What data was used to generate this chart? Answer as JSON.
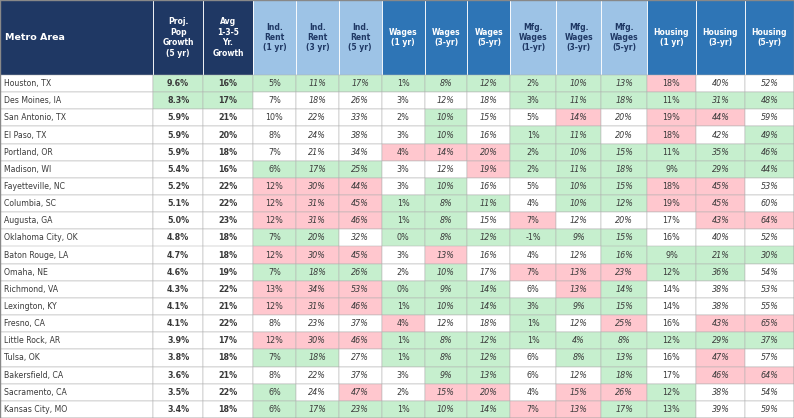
{
  "headers": [
    "Metro Area",
    "Proj.\nPop\nGrowth\n(5 yr)",
    "Avg\n1-3-5\nYr.\nGrowth",
    "Ind.\nRent\n(1 yr)",
    "Ind.\nRent\n(3 yr)",
    "Ind.\nRent\n(5 yr)",
    "Wages\n(1 yr)",
    "Wages\n(3-yr)",
    "Wages\n(5-yr)",
    "Mfg.\nWages\n(1-yr)",
    "Mfg.\nWages\n(3-yr)",
    "Mfg.\nWages\n(5-yr)",
    "Housing\n(1 yr)",
    "Housing\n(3-yr)",
    "Housing\n(5-yr)"
  ],
  "rows": [
    [
      "Houston, TX",
      "9.6%",
      "16%",
      "5%",
      "11%",
      "17%",
      "1%",
      "8%",
      "12%",
      "2%",
      "10%",
      "13%",
      "18%",
      "40%",
      "52%"
    ],
    [
      "Des Moines, IA",
      "8.3%",
      "17%",
      "7%",
      "18%",
      "26%",
      "3%",
      "12%",
      "18%",
      "3%",
      "11%",
      "18%",
      "11%",
      "31%",
      "48%"
    ],
    [
      "San Antonio, TX",
      "5.9%",
      "21%",
      "10%",
      "22%",
      "33%",
      "2%",
      "10%",
      "15%",
      "5%",
      "14%",
      "20%",
      "19%",
      "44%",
      "59%"
    ],
    [
      "El Paso, TX",
      "5.9%",
      "20%",
      "8%",
      "24%",
      "38%",
      "3%",
      "10%",
      "16%",
      "1%",
      "11%",
      "20%",
      "18%",
      "42%",
      "49%"
    ],
    [
      "Portland, OR",
      "5.9%",
      "18%",
      "7%",
      "21%",
      "34%",
      "4%",
      "14%",
      "20%",
      "2%",
      "10%",
      "15%",
      "11%",
      "35%",
      "46%"
    ],
    [
      "Madison, WI",
      "5.4%",
      "16%",
      "6%",
      "17%",
      "25%",
      "3%",
      "12%",
      "19%",
      "2%",
      "11%",
      "18%",
      "9%",
      "29%",
      "44%"
    ],
    [
      "Fayetteville, NC",
      "5.2%",
      "22%",
      "12%",
      "30%",
      "44%",
      "3%",
      "10%",
      "16%",
      "5%",
      "10%",
      "15%",
      "18%",
      "45%",
      "53%"
    ],
    [
      "Columbia, SC",
      "5.1%",
      "22%",
      "12%",
      "31%",
      "45%",
      "1%",
      "8%",
      "11%",
      "4%",
      "10%",
      "12%",
      "19%",
      "45%",
      "60%"
    ],
    [
      "Augusta, GA",
      "5.0%",
      "23%",
      "12%",
      "31%",
      "46%",
      "1%",
      "8%",
      "15%",
      "7%",
      "12%",
      "20%",
      "17%",
      "43%",
      "64%"
    ],
    [
      "Oklahoma City, OK",
      "4.8%",
      "18%",
      "7%",
      "20%",
      "32%",
      "0%",
      "8%",
      "12%",
      "-1%",
      "9%",
      "15%",
      "16%",
      "40%",
      "52%"
    ],
    [
      "Baton Rouge, LA",
      "4.7%",
      "18%",
      "12%",
      "30%",
      "45%",
      "3%",
      "13%",
      "16%",
      "4%",
      "12%",
      "16%",
      "9%",
      "21%",
      "30%"
    ],
    [
      "Omaha, NE",
      "4.6%",
      "19%",
      "7%",
      "18%",
      "26%",
      "2%",
      "10%",
      "17%",
      "7%",
      "13%",
      "23%",
      "12%",
      "36%",
      "54%"
    ],
    [
      "Richmond, VA",
      "4.3%",
      "22%",
      "13%",
      "34%",
      "53%",
      "0%",
      "9%",
      "14%",
      "6%",
      "13%",
      "14%",
      "14%",
      "38%",
      "53%"
    ],
    [
      "Lexington, KY",
      "4.1%",
      "21%",
      "12%",
      "31%",
      "46%",
      "1%",
      "10%",
      "14%",
      "3%",
      "9%",
      "15%",
      "14%",
      "38%",
      "55%"
    ],
    [
      "Fresno, CA",
      "4.1%",
      "22%",
      "8%",
      "23%",
      "37%",
      "4%",
      "12%",
      "18%",
      "1%",
      "12%",
      "25%",
      "16%",
      "43%",
      "65%"
    ],
    [
      "Little Rock, AR",
      "3.9%",
      "17%",
      "12%",
      "30%",
      "46%",
      "1%",
      "8%",
      "12%",
      "1%",
      "4%",
      "8%",
      "12%",
      "29%",
      "37%"
    ],
    [
      "Tulsa, OK",
      "3.8%",
      "18%",
      "7%",
      "18%",
      "27%",
      "1%",
      "8%",
      "12%",
      "6%",
      "8%",
      "13%",
      "16%",
      "47%",
      "57%"
    ],
    [
      "Bakersfield, CA",
      "3.6%",
      "21%",
      "8%",
      "22%",
      "37%",
      "3%",
      "9%",
      "13%",
      "6%",
      "12%",
      "18%",
      "17%",
      "46%",
      "64%"
    ],
    [
      "Sacramento, CA",
      "3.5%",
      "22%",
      "6%",
      "24%",
      "47%",
      "2%",
      "15%",
      "20%",
      "4%",
      "15%",
      "26%",
      "12%",
      "38%",
      "54%"
    ],
    [
      "Kansas City, MO",
      "3.4%",
      "18%",
      "6%",
      "17%",
      "23%",
      "1%",
      "10%",
      "14%",
      "7%",
      "13%",
      "17%",
      "13%",
      "39%",
      "59%"
    ]
  ],
  "col_widths_raw": [
    1.75,
    0.57,
    0.57,
    0.49,
    0.49,
    0.49,
    0.49,
    0.49,
    0.49,
    0.52,
    0.52,
    0.52,
    0.56,
    0.56,
    0.56
  ],
  "header_bg": [
    "#1f3864",
    "#1f3864",
    "#1f3864",
    "#9dc3e6",
    "#9dc3e6",
    "#9dc3e6",
    "#2e75b6",
    "#2e75b6",
    "#2e75b6",
    "#9dc3e6",
    "#9dc3e6",
    "#9dc3e6",
    "#2e75b6",
    "#2e75b6",
    "#2e75b6"
  ],
  "header_fg": [
    "white",
    "white",
    "white",
    "#1f3864",
    "#1f3864",
    "#1f3864",
    "white",
    "white",
    "white",
    "#1f3864",
    "#1f3864",
    "#1f3864",
    "white",
    "white",
    "white"
  ],
  "green": "#c6efce",
  "pink": "#ffc7ce",
  "white": "#ffffff",
  "border": "#b0b0b0",
  "text": "#3a3a3a",
  "cell_colors": {
    "0,1": "green",
    "0,2": "green",
    "0,3": "green",
    "0,4": "green",
    "0,5": "green",
    "0,6": "green",
    "0,7": "green",
    "0,8": "green",
    "1,1": "green",
    "1,2": "green",
    "1,3": "white",
    "1,4": "white",
    "1,5": "white",
    "1,6": "white",
    "1,7": "white",
    "1,8": "white",
    "1,12": "green",
    "2,3": "white",
    "2,4": "white",
    "2,5": "white",
    "3,3": "white",
    "3,4": "white",
    "3,5": "white",
    "4,3": "white",
    "4,4": "white",
    "4,5": "white",
    "4,7": "pink",
    "4,8": "pink",
    "5,3": "green",
    "5,4": "green",
    "5,5": "green",
    "6,3": "pink",
    "6,4": "pink",
    "6,5": "pink",
    "7,3": "pink",
    "7,4": "pink",
    "7,5": "pink",
    "7,8": "green",
    "8,3": "pink",
    "8,4": "pink",
    "8,5": "pink",
    "8,9": "pink",
    "9,6": "green",
    "10,3": "pink",
    "10,4": "pink",
    "10,5": "pink",
    "10,12": "green",
    "10,13": "green",
    "10,14": "green",
    "11,9": "pink",
    "12,3": "pink",
    "12,4": "pink",
    "12,5": "pink",
    "12,6": "green",
    "13,3": "pink",
    "13,4": "pink",
    "13,5": "pink",
    "14,11": "pink",
    "14,14": "pink",
    "15,3": "pink",
    "15,4": "pink",
    "15,5": "pink",
    "15,10": "green",
    "15,11": "green",
    "18,5": "pink",
    "18,11": "pink",
    "19,5": "green"
  }
}
